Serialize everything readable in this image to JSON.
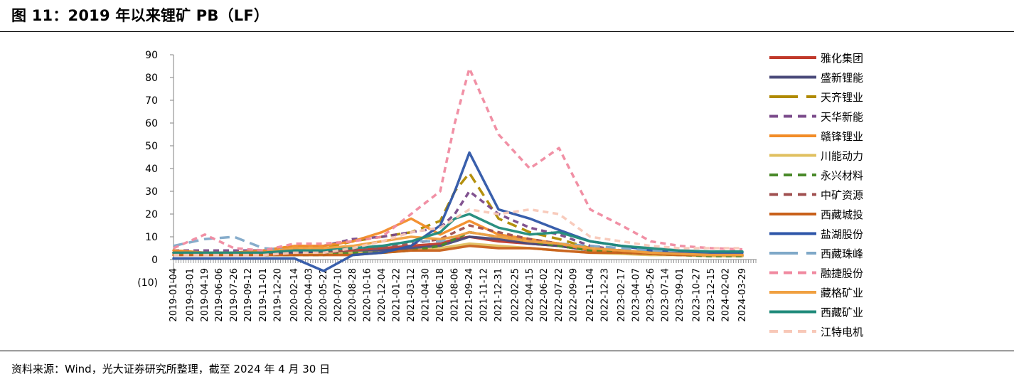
{
  "title": "图 11：2019 年以来锂矿 PB（LF）",
  "source": "资料来源：Wind，光大证券研究所整理，截至 2024 年 4 月 30 日",
  "chart_data": {
    "type": "line",
    "title": "图 11：2019 年以来锂矿 PB（LF）",
    "xlabel": "",
    "ylabel": "",
    "ylim": [
      -10,
      90
    ],
    "y_ticks": [
      "90",
      "80",
      "70",
      "60",
      "50",
      "40",
      "30",
      "20",
      "10",
      "0",
      "(10)"
    ],
    "x_ticks": [
      "2019-01-04",
      "2019-03-01",
      "2019-04-19",
      "2019-06-06",
      "2019-07-26",
      "2019-09-12",
      "2019-11-01",
      "2019-12-20",
      "2020-02-14",
      "2020-04-03",
      "2020-05-22",
      "2020-07-10",
      "2020-08-28",
      "2020-10-16",
      "2020-12-04",
      "2021-01-22",
      "2021-03-12",
      "2021-04-30",
      "2021-06-18",
      "2021-08-06",
      "2021-09-24",
      "2021-11-12",
      "2021-12-31",
      "2022-02-25",
      "2022-04-15",
      "2022-06-02",
      "2022-07-22",
      "2022-09-09",
      "2022-11-04",
      "2022-12-23",
      "2023-02-17",
      "2023-04-07",
      "2023-05-26",
      "2023-07-14",
      "2023-09-01",
      "2023-10-27",
      "2023-12-15",
      "2024-02-02",
      "2024-03-29"
    ],
    "x": [
      "2019-01-04",
      "2019-04-19",
      "2019-07-26",
      "2019-11-01",
      "2020-02-14",
      "2020-05-22",
      "2020-08-28",
      "2020-12-04",
      "2021-03-12",
      "2021-06-18",
      "2021-08-06",
      "2021-09-24",
      "2021-12-31",
      "2022-04-15",
      "2022-07-22",
      "2022-11-04",
      "2023-02-17",
      "2023-05-26",
      "2023-09-01",
      "2023-12-15",
      "2024-03-29"
    ],
    "grid": false,
    "legend_position": "right",
    "series": [
      {
        "name": "雅化集团",
        "color": "#c0392b",
        "dash": "solid",
        "values": [
          3,
          3,
          3,
          3,
          3.5,
          3.5,
          4,
          5,
          6,
          7,
          9,
          10,
          8,
          7,
          6,
          4,
          3,
          2.5,
          2,
          2,
          2
        ]
      },
      {
        "name": "盛新锂能",
        "color": "#4a4a7a",
        "dash": "solid",
        "values": [
          3,
          2.5,
          2.5,
          2.5,
          3,
          3,
          3,
          4,
          5,
          6,
          8,
          10,
          9,
          7,
          6,
          4,
          3,
          2.5,
          2,
          2,
          1.5
        ]
      },
      {
        "name": "天齐锂业",
        "color": "#b08a00",
        "dash": "long",
        "values": [
          4,
          3,
          3,
          4,
          6,
          5,
          8,
          10,
          12,
          17,
          30,
          38,
          18,
          12,
          9,
          5,
          4,
          3,
          2.5,
          2,
          2
        ]
      },
      {
        "name": "天华新能",
        "color": "#7a4a8a",
        "dash": "dash",
        "values": [
          4,
          4,
          4,
          4,
          5,
          6,
          9,
          10,
          12,
          14,
          20,
          30,
          20,
          14,
          11,
          6,
          4,
          3,
          2.5,
          2,
          2
        ]
      },
      {
        "name": "赣锋锂业",
        "color": "#f28c28",
        "dash": "solid",
        "values": [
          4,
          3,
          3,
          4,
          6,
          6,
          8,
          12,
          18,
          11,
          14,
          17,
          11,
          9,
          7,
          4,
          3.5,
          3,
          2.5,
          2,
          2
        ]
      },
      {
        "name": "川能动力",
        "color": "#e0c060",
        "dash": "solid",
        "values": [
          2,
          2,
          2,
          2,
          2,
          2.5,
          3,
          3,
          4,
          5,
          6,
          7,
          6,
          5,
          4,
          3,
          2.5,
          2,
          2,
          1.5,
          1.5
        ]
      },
      {
        "name": "永兴材料",
        "color": "#4a8a2a",
        "dash": "dash",
        "values": [
          2,
          2,
          2,
          2,
          2,
          2,
          3,
          3,
          4,
          6,
          9,
          12,
          10,
          8,
          6,
          4,
          3,
          2.5,
          2,
          1.5,
          1.5
        ]
      },
      {
        "name": "中矿资源",
        "color": "#a05050",
        "dash": "dash",
        "values": [
          3,
          3,
          3,
          3,
          3,
          3,
          4,
          5,
          7,
          9,
          12,
          15,
          12,
          9,
          7,
          5,
          4,
          3,
          2.5,
          2,
          2
        ]
      },
      {
        "name": "西藏城投",
        "color": "#c8601a",
        "dash": "solid",
        "values": [
          2,
          2,
          2,
          2,
          2,
          2,
          2,
          3,
          4,
          4,
          5,
          6,
          5,
          5,
          4,
          3,
          3,
          2.5,
          2,
          2,
          2
        ]
      },
      {
        "name": "盐湖股份",
        "color": "#2e56a8",
        "dash": "solid",
        "values": [
          0.5,
          0.5,
          0.5,
          0.5,
          0.5,
          -5,
          2,
          3,
          6,
          15,
          30,
          47,
          22,
          18,
          13,
          8,
          6,
          4,
          3.5,
          3,
          3
        ]
      },
      {
        "name": "西藏珠峰",
        "color": "#7fa8c8",
        "dash": "long",
        "values": [
          6,
          9,
          10,
          5,
          4,
          5,
          5,
          6,
          8,
          8,
          10,
          12,
          10,
          8,
          7,
          6,
          5,
          4,
          4,
          3.5,
          3.5
        ]
      },
      {
        "name": "融捷股份",
        "color": "#f08aa0",
        "dash": "dash",
        "values": [
          5,
          11,
          5,
          4,
          7,
          7,
          8,
          10,
          20,
          30,
          60,
          84,
          55,
          40,
          49,
          22,
          15,
          8,
          6,
          5,
          4.5
        ]
      },
      {
        "name": "藏格矿业",
        "color": "#f0a040",
        "dash": "solid",
        "values": [
          3,
          3,
          3,
          3,
          5,
          5,
          6,
          8,
          10,
          9,
          10,
          12,
          10,
          8,
          7,
          5,
          4,
          3,
          2.5,
          2,
          2
        ]
      },
      {
        "name": "西藏矿业",
        "color": "#1f8a7a",
        "dash": "solid",
        "values": [
          3,
          3,
          3,
          3,
          4,
          4,
          5,
          6,
          8,
          12,
          18,
          20,
          14,
          11,
          12,
          8,
          6,
          5,
          4,
          3.5,
          3.5
        ]
      },
      {
        "name": "江特电机",
        "color": "#f8c8b8",
        "dash": "dash",
        "values": [
          2,
          2,
          2,
          2,
          3,
          3,
          5,
          8,
          12,
          14,
          18,
          22,
          20,
          22,
          20,
          10,
          8,
          6,
          5,
          5,
          5
        ]
      }
    ]
  }
}
